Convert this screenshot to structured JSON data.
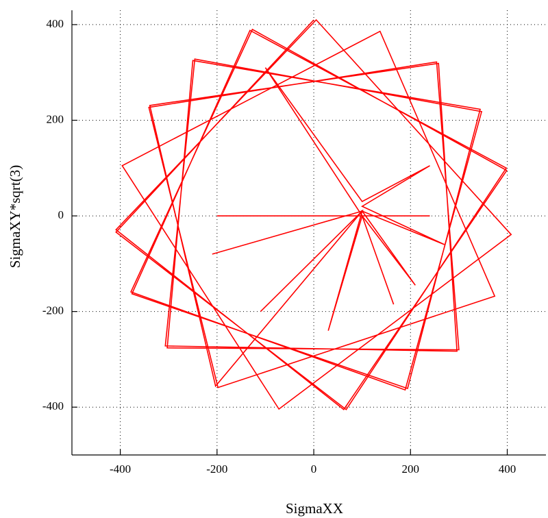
{
  "chart_data": {
    "type": "line",
    "x_label": "SigmaXX",
    "y_label": "SigmaXY*sqrt(3)",
    "xlim": [
      -500,
      480
    ],
    "ylim": [
      -500,
      430
    ],
    "xticks": [
      -400,
      -200,
      0,
      200,
      400
    ],
    "yticks": [
      -400,
      -200,
      0,
      200,
      400
    ],
    "grid": true,
    "series": [
      {
        "color": "#ff0000",
        "x": [
          0,
          -409,
          67,
          398,
          -132,
          -376,
          194,
          344,
          -250,
          -303,
          300,
          254,
          -341,
          -198,
          374,
          137,
          -396,
          -72,
          408,
          5,
          -409,
          62,
          399,
          -127,
          -378,
          189,
          347,
          -246,
          -307,
          296,
          258,
          -339,
          -203,
          100,
          -210,
          100,
          -110,
          100,
          30,
          100,
          165,
          100,
          210,
          100,
          270,
          100,
          240,
          100,
          -100,
          100,
          -200,
          240
        ],
        "values": [
          410,
          -34,
          -405,
          100,
          388,
          -163,
          -361,
          223,
          325,
          -276,
          -280,
          322,
          227,
          -359,
          -168,
          386,
          105,
          -404,
          -39,
          410,
          -29,
          -405,
          95,
          390,
          -159,
          -364,
          218,
          328,
          -272,
          -283,
          319,
          231,
          -356,
          10,
          -80,
          10,
          -200,
          10,
          -240,
          0,
          -185,
          0,
          -145,
          10,
          -60,
          20,
          105,
          30,
          310,
          0,
          0,
          0
        ]
      }
    ]
  }
}
